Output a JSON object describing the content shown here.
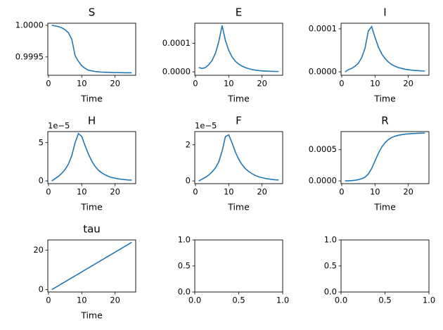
{
  "chart_data": [
    {
      "type": "line",
      "title": "S",
      "xlabel": "Time",
      "color": "#1f77b4",
      "x": [
        1,
        2,
        3,
        4,
        5,
        6,
        7,
        8,
        9,
        10,
        11,
        12,
        13,
        14,
        15,
        16,
        17,
        18,
        19,
        20,
        21,
        22,
        23,
        24,
        25
      ],
      "values": [
        1.0,
        0.99999,
        0.99998,
        0.99996,
        0.99993,
        0.99988,
        0.99978,
        0.99952,
        0.99943,
        0.99936,
        0.99932,
        0.99929,
        0.99928,
        0.99927,
        0.999265,
        0.99926,
        0.999258,
        0.999256,
        0.999254,
        0.999253,
        0.999252,
        0.999251,
        0.99925,
        0.99925,
        0.99925
      ],
      "xlim": [
        -0.2,
        26.2
      ],
      "ylim": [
        0.99921,
        1.000033
      ],
      "xticks": [
        0,
        10,
        20
      ],
      "yticks": [
        0.9995,
        {
          "value": 1,
          "label": "1.0000"
        }
      ]
    },
    {
      "type": "line",
      "title": "E",
      "xlabel": "Time",
      "color": "#1f77b4",
      "x": [
        1,
        2,
        3,
        4,
        5,
        6,
        7,
        8,
        9,
        10,
        11,
        12,
        13,
        14,
        15,
        16,
        17,
        18,
        19,
        20,
        21,
        22,
        23,
        24,
        25
      ],
      "values": [
        1.5e-05,
        1.2e-05,
        1.5e-05,
        2.5e-05,
        4e-05,
        6.5e-05,
        0.000105,
        0.000162,
        0.00011,
        7.5e-05,
        5.2e-05,
        3.7e-05,
        2.7e-05,
        2e-05,
        1.5e-05,
        1.1e-05,
        8e-06,
        6e-06,
        4.5e-06,
        3.5e-06,
        2.8e-06,
        2.2e-06,
        1.8e-06,
        1.5e-06,
        1.2e-06
      ],
      "xlim": [
        -0.2,
        26.2
      ],
      "ylim": [
        -1.2e-05,
        0.00017
      ],
      "xticks": [
        0,
        10,
        20
      ],
      "yticks": [
        {
          "value": 0,
          "label": "0.0000"
        },
        {
          "value": 0.0001,
          "label": "0.0001"
        }
      ]
    },
    {
      "type": "line",
      "title": "I",
      "xlabel": "Time",
      "color": "#1f77b4",
      "x": [
        1,
        2,
        3,
        4,
        5,
        6,
        7,
        8,
        9,
        10,
        11,
        12,
        13,
        14,
        15,
        16,
        17,
        18,
        19,
        20,
        21,
        22,
        23,
        24,
        25
      ],
      "values": [
        0,
        5e-06,
        8e-06,
        1.3e-05,
        2e-05,
        3.3e-05,
        5.5e-05,
        9.5e-05,
        0.000105,
        8e-05,
        5.8e-05,
        4.2e-05,
        3.1e-05,
        2.3e-05,
        1.7e-05,
        1.3e-05,
        1e-05,
        8e-06,
        6e-06,
        5e-06,
        4e-06,
        3.3e-06,
        2.7e-06,
        2.2e-06,
        1.8e-06
      ],
      "xlim": [
        -0.2,
        26.2
      ],
      "ylim": [
        -8e-06,
        0.000113
      ],
      "xticks": [
        0,
        10,
        20
      ],
      "yticks": [
        {
          "value": 0,
          "label": "0.0000"
        },
        {
          "value": 0.0001,
          "label": "0.0001"
        }
      ]
    },
    {
      "type": "line",
      "title": "H",
      "xlabel": "Time",
      "y_offset_label": "1e−5",
      "color": "#1f77b4",
      "x": [
        1,
        2,
        3,
        4,
        5,
        6,
        7,
        8,
        9,
        10,
        11,
        12,
        13,
        14,
        15,
        16,
        17,
        18,
        19,
        20,
        21,
        22,
        23,
        24,
        25
      ],
      "values": [
        0,
        0.3,
        0.6,
        1.0,
        1.5,
        2.2,
        3.3,
        5.0,
        6.2,
        5.8,
        4.6,
        3.5,
        2.6,
        1.9,
        1.4,
        1.05,
        0.8,
        0.6,
        0.45,
        0.35,
        0.27,
        0.21,
        0.16,
        0.12,
        0.1
      ],
      "xlim": [
        -0.2,
        26.2
      ],
      "ylim": [
        -0.36,
        6.45
      ],
      "xticks": [
        0,
        10,
        20
      ],
      "yticks": [
        0,
        5
      ]
    },
    {
      "type": "line",
      "title": "F",
      "xlabel": "Time",
      "y_offset_label": "1e−5",
      "color": "#1f77b4",
      "x": [
        1,
        2,
        3,
        4,
        5,
        6,
        7,
        8,
        9,
        10,
        11,
        12,
        13,
        14,
        15,
        16,
        17,
        18,
        19,
        20,
        21,
        22,
        23,
        24,
        25
      ],
      "values": [
        0,
        0.1,
        0.2,
        0.33,
        0.5,
        0.72,
        1.05,
        1.65,
        2.45,
        2.55,
        2.1,
        1.6,
        1.2,
        0.9,
        0.68,
        0.52,
        0.4,
        0.3,
        0.23,
        0.18,
        0.14,
        0.11,
        0.08,
        0.06,
        0.05
      ],
      "xlim": [
        -0.2,
        26.2
      ],
      "ylim": [
        -0.15,
        2.73
      ],
      "xticks": [
        0,
        10,
        20
      ],
      "yticks": [
        0,
        2
      ]
    },
    {
      "type": "line",
      "title": "R",
      "xlabel": "Time",
      "color": "#1f77b4",
      "x": [
        1,
        2,
        3,
        4,
        5,
        6,
        7,
        8,
        9,
        10,
        11,
        12,
        13,
        14,
        15,
        16,
        17,
        18,
        19,
        20,
        21,
        22,
        23,
        24,
        25
      ],
      "values": [
        0,
        2e-06,
        5e-06,
        1e-05,
        2e-05,
        3.5e-05,
        6e-05,
        0.00011,
        0.0002,
        0.00032,
        0.00044,
        0.00054,
        0.00061,
        0.00066,
        0.000695,
        0.000715,
        0.00073,
        0.00074,
        0.000748,
        0.000753,
        0.000757,
        0.00076,
        0.000762,
        0.000764,
        0.000766
      ],
      "xlim": [
        -0.2,
        26.2
      ],
      "ylim": [
        -4.4e-05,
        0.00079
      ],
      "xticks": [
        0,
        10,
        20
      ],
      "yticks": [
        {
          "value": 0,
          "label": "0.0000"
        },
        {
          "value": 0.0005,
          "label": "0.0005"
        }
      ]
    },
    {
      "type": "line",
      "title": "tau",
      "xlabel": "Time",
      "color": "#1f77b4",
      "x": [
        1,
        2,
        3,
        4,
        5,
        6,
        7,
        8,
        9,
        10,
        11,
        12,
        13,
        14,
        15,
        16,
        17,
        18,
        19,
        20,
        21,
        22,
        23,
        24,
        25
      ],
      "values": [
        0,
        1,
        2,
        3,
        4,
        5,
        6,
        7,
        8,
        9,
        10,
        11,
        12,
        13,
        14,
        15,
        16,
        17,
        18,
        19,
        20,
        21,
        22,
        23,
        24
      ],
      "xlim": [
        -0.2,
        26.2
      ],
      "ylim": [
        -1.2,
        25.2
      ],
      "xticks": [
        0,
        10,
        20
      ],
      "yticks": [
        0,
        20
      ]
    },
    {
      "type": "line",
      "xlim": [
        0,
        1
      ],
      "ylim": [
        0,
        1
      ],
      "xticks": [
        {
          "value": 0,
          "label": "0.0"
        },
        {
          "value": 0.5,
          "label": "0.5"
        },
        {
          "value": 1,
          "label": "1.0"
        }
      ],
      "yticks": [
        {
          "value": 0,
          "label": "0.0"
        },
        {
          "value": 0.5,
          "label": "0.5"
        },
        {
          "value": 1,
          "label": "1.0"
        }
      ]
    },
    {
      "type": "line",
      "xlim": [
        0,
        1
      ],
      "ylim": [
        0,
        1
      ],
      "xticks": [
        {
          "value": 0,
          "label": "0.0"
        },
        {
          "value": 0.5,
          "label": "0.5"
        },
        {
          "value": 1,
          "label": "1.0"
        }
      ],
      "yticks": [
        {
          "value": 0,
          "label": "0.0"
        },
        {
          "value": 0.5,
          "label": "0.5"
        },
        {
          "value": 1,
          "label": "1.0"
        }
      ]
    }
  ]
}
